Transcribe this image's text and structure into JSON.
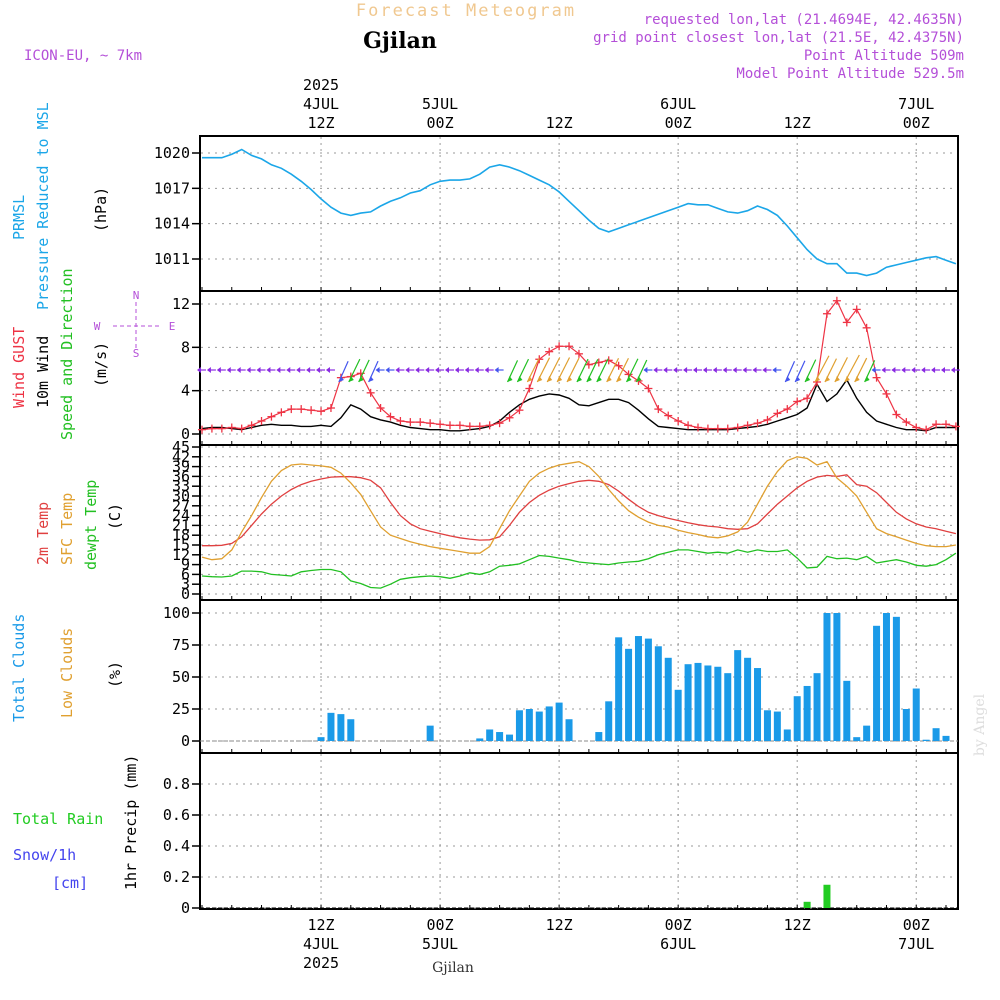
{
  "header": {
    "forecast_title": "Forecast Meteogram",
    "location": "Gjilan",
    "model": "ICON-EU, ~ 7km",
    "requested": "requested lon,lat (21.4694E, 42.4635N)",
    "gridpoint": "grid point closest lon,lat (21.5E, 42.4375N)",
    "point_altitude": "Point Altitude 509m",
    "model_altitude": "Model Point Altitude 529.5m",
    "footer_location": "Gjilan",
    "watermark": "by Angel"
  },
  "time_axis": {
    "top_labels": [
      {
        "h": 12,
        "lines": [
          "2025",
          "4JUL",
          "12Z"
        ]
      },
      {
        "h": 24,
        "lines": [
          "5JUL",
          "00Z"
        ]
      },
      {
        "h": 36,
        "lines": [
          "12Z"
        ]
      },
      {
        "h": 48,
        "lines": [
          "6JUL",
          "00Z"
        ]
      },
      {
        "h": 60,
        "lines": [
          "12Z"
        ]
      },
      {
        "h": 72,
        "lines": [
          "7JUL",
          "00Z"
        ]
      }
    ],
    "bottom_labels": [
      {
        "h": 12,
        "lines": [
          "12Z",
          "4JUL",
          "2025"
        ]
      },
      {
        "h": 24,
        "lines": [
          "00Z",
          "5JUL"
        ]
      },
      {
        "h": 36,
        "lines": [
          "12Z"
        ]
      },
      {
        "h": 48,
        "lines": [
          "00Z",
          "6JUL"
        ]
      },
      {
        "h": 60,
        "lines": [
          "12Z"
        ]
      },
      {
        "h": 72,
        "lines": [
          "00Z",
          "7JUL"
        ]
      }
    ]
  },
  "panel_labels": {
    "pressure": [
      "PRMSL",
      "Pressure Reduced to MSL"
    ],
    "pressure_unit": "(hPa)",
    "wind": [
      "Wind GUST",
      "10m Wind",
      "Speed and Direction"
    ],
    "wind_unit": "(m/s)",
    "compass": {
      "n": "N",
      "s": "S",
      "e": "E",
      "w": "W"
    },
    "temp": [
      "2m Temp",
      "SFC Temp",
      "dewpt Temp"
    ],
    "temp_unit": "(C)",
    "clouds": [
      "Total Clouds",
      "Low Clouds"
    ],
    "clouds_unit": "(%)",
    "precip": [
      "Total  Rain",
      "Snow/1h",
      "[cm]"
    ],
    "precip_unit": "1hr Precip (mm)"
  },
  "colors": {
    "pressure": "#1ba6e8",
    "gust": "#ee3344",
    "wind": "#000000",
    "t2m": "#e04040",
    "tsfc": "#e0a030",
    "dewpt": "#22c022",
    "clouds": "#1a9ae8",
    "rain": "#22cc22"
  },
  "chart_data": [
    {
      "type": "line",
      "panel": "pressure",
      "x_start_hour": 0,
      "x_end_hour": 76,
      "x_step_hours": 1,
      "yticks": [
        "1011",
        "1014",
        "1017",
        "1020"
      ],
      "ylim": [
        1009,
        1021.5
      ],
      "series": [
        {
          "name": "PRMSL",
          "values": [
            1019.6,
            1019.6,
            1019.6,
            1019.9,
            1020.3,
            1019.8,
            1019.5,
            1019.0,
            1018.7,
            1018.2,
            1017.6,
            1016.9,
            1016.1,
            1015.4,
            1014.9,
            1014.7,
            1014.9,
            1015.0,
            1015.5,
            1015.9,
            1016.2,
            1016.6,
            1016.8,
            1017.3,
            1017.6,
            1017.7,
            1017.7,
            1017.8,
            1018.2,
            1018.8,
            1019.0,
            1018.8,
            1018.5,
            1018.1,
            1017.7,
            1017.3,
            1016.7,
            1015.9,
            1015.1,
            1014.3,
            1013.6,
            1013.3,
            1013.6,
            1013.9,
            1014.2,
            1014.5,
            1014.8,
            1015.1,
            1015.4,
            1015.7,
            1015.6,
            1015.6,
            1015.3,
            1015.0,
            1014.9,
            1015.1,
            1015.5,
            1015.2,
            1014.7,
            1013.8,
            1012.8,
            1011.8,
            1011.0,
            1010.6,
            1010.6,
            1009.8,
            1009.8,
            1009.6,
            1009.8,
            1010.3,
            1010.5,
            1010.7,
            1010.9,
            1011.1,
            1011.2,
            1010.9,
            1010.6
          ]
        }
      ]
    },
    {
      "type": "line",
      "panel": "wind",
      "x_start_hour": 0,
      "x_end_hour": 76,
      "x_step_hours": 1,
      "yticks": [
        "0",
        "4",
        "8",
        "12"
      ],
      "ylim": [
        0,
        13.5
      ],
      "series": [
        {
          "name": "Wind GUST",
          "values": [
            0.4,
            0.5,
            0.5,
            0.6,
            0.5,
            0.8,
            1.2,
            1.6,
            2.0,
            2.3,
            2.3,
            2.2,
            2.1,
            2.4,
            5.2,
            5.3,
            5.6,
            3.8,
            2.4,
            1.6,
            1.2,
            1.1,
            1.1,
            1.0,
            0.9,
            0.8,
            0.8,
            0.7,
            0.7,
            0.8,
            1.0,
            1.5,
            2.2,
            4.2,
            6.9,
            7.6,
            8.1,
            8.1,
            7.4,
            6.4,
            6.6,
            6.8,
            6.3,
            5.5,
            4.9,
            4.2,
            2.3,
            1.7,
            1.2,
            0.8,
            0.6,
            0.5,
            0.5,
            0.5,
            0.6,
            0.8,
            1.0,
            1.3,
            1.9,
            2.3,
            3.0,
            3.3,
            4.8,
            11.1,
            12.3,
            10.3,
            11.5,
            9.8,
            5.2,
            3.7,
            1.8,
            1.1,
            0.6,
            0.4,
            0.9,
            0.9,
            0.7
          ]
        },
        {
          "name": "10m Wind",
          "values": [
            0.5,
            0.6,
            0.6,
            0.5,
            0.4,
            0.6,
            0.8,
            0.9,
            0.8,
            0.8,
            0.7,
            0.7,
            0.8,
            0.7,
            1.5,
            2.7,
            2.3,
            1.6,
            1.3,
            1.1,
            0.8,
            0.6,
            0.5,
            0.4,
            0.4,
            0.3,
            0.3,
            0.4,
            0.5,
            0.7,
            1.2,
            2.0,
            2.7,
            3.2,
            3.5,
            3.7,
            3.6,
            3.3,
            2.7,
            2.6,
            2.9,
            3.2,
            3.2,
            2.9,
            2.2,
            1.4,
            0.7,
            0.6,
            0.5,
            0.4,
            0.4,
            0.4,
            0.4,
            0.4,
            0.5,
            0.6,
            0.7,
            0.9,
            1.2,
            1.5,
            1.8,
            2.4,
            4.6,
            3.0,
            3.7,
            5.0,
            3.3,
            2.0,
            1.2,
            0.9,
            0.6,
            0.4,
            0.4,
            0.3,
            0.6,
            0.6,
            0.6
          ]
        }
      ]
    },
    {
      "type": "line",
      "panel": "temp",
      "x_start_hour": 0,
      "x_end_hour": 76,
      "x_step_hours": 1,
      "yticks": [
        "0",
        "3",
        "6",
        "9",
        "12",
        "15",
        "18",
        "21",
        "24",
        "27",
        "30",
        "33",
        "36",
        "39",
        "42",
        "45"
      ],
      "ylim": [
        0,
        45
      ],
      "series": [
        {
          "name": "2m Temp",
          "values": [
            14.8,
            14.8,
            14.9,
            15.5,
            17.5,
            21.0,
            24.5,
            27.5,
            30.0,
            32.0,
            33.5,
            34.5,
            35.2,
            35.8,
            35.9,
            35.9,
            35.6,
            34.8,
            32.5,
            28.0,
            24.0,
            21.5,
            20.0,
            19.2,
            18.5,
            17.8,
            17.2,
            16.8,
            16.5,
            16.6,
            17.5,
            21.0,
            25.0,
            28.0,
            30.2,
            31.8,
            33.0,
            33.8,
            34.5,
            34.8,
            34.5,
            33.5,
            31.5,
            29.0,
            26.8,
            25.0,
            24.0,
            23.2,
            22.5,
            21.8,
            21.2,
            20.8,
            20.5,
            20.0,
            19.8,
            20.0,
            21.5,
            24.5,
            27.5,
            30.0,
            32.5,
            34.5,
            35.8,
            36.3,
            36.0,
            36.5,
            33.5,
            33.0,
            31.0,
            28.0,
            25.0,
            23.0,
            21.5,
            20.5,
            20.0,
            19.2,
            18.5
          ]
        },
        {
          "name": "SFC Temp",
          "values": [
            11.3,
            10.5,
            10.8,
            13.5,
            19.0,
            24.0,
            29.5,
            34.5,
            37.8,
            39.5,
            39.8,
            39.5,
            39.2,
            38.8,
            37.0,
            34.0,
            30.5,
            25.5,
            20.5,
            18.0,
            17.0,
            16.0,
            15.2,
            14.5,
            14.0,
            13.5,
            13.0,
            12.5,
            12.5,
            14.5,
            20.0,
            25.5,
            30.0,
            34.5,
            37.0,
            38.5,
            39.5,
            40.0,
            40.5,
            39.0,
            36.0,
            32.0,
            28.5,
            25.5,
            23.5,
            22.0,
            21.0,
            20.5,
            19.5,
            18.8,
            18.2,
            17.5,
            17.2,
            17.8,
            19.0,
            22.0,
            27.5,
            33.0,
            37.5,
            40.8,
            42.0,
            41.5,
            39.5,
            40.5,
            35.5,
            33.0,
            30.0,
            25.0,
            20.0,
            18.5,
            17.5,
            16.5,
            15.5,
            14.8,
            14.5,
            14.5,
            15.0
          ]
        },
        {
          "name": "dewpt Temp",
          "values": [
            5.5,
            5.3,
            5.2,
            5.5,
            7.0,
            7.0,
            6.8,
            6.0,
            5.8,
            5.5,
            6.8,
            7.2,
            7.5,
            7.5,
            6.8,
            4.0,
            3.2,
            2.0,
            1.8,
            3.0,
            4.5,
            5.0,
            5.3,
            5.5,
            5.3,
            4.8,
            5.5,
            6.5,
            6.0,
            6.8,
            8.5,
            8.8,
            9.2,
            10.5,
            11.8,
            11.5,
            11.0,
            10.5,
            9.8,
            9.5,
            9.2,
            9.0,
            9.5,
            9.8,
            10.0,
            10.8,
            12.0,
            12.8,
            13.5,
            13.5,
            13.0,
            12.5,
            12.8,
            12.5,
            13.5,
            12.8,
            13.5,
            13.0,
            13.0,
            13.5,
            11.0,
            8.0,
            8.2,
            11.5,
            10.8,
            11.0,
            10.5,
            11.5,
            9.5,
            10.0,
            10.5,
            9.8,
            8.8,
            8.5,
            9.0,
            10.5,
            12.5
          ]
        }
      ]
    },
    {
      "type": "bar",
      "panel": "clouds",
      "x_start_hour": 0,
      "x_end_hour": 76,
      "x_step_hours": 1,
      "yticks": [
        "0",
        "25",
        "50",
        "75",
        "100"
      ],
      "ylim": [
        0,
        105
      ],
      "series": [
        {
          "name": "Total Clouds",
          "values": [
            0,
            0,
            0,
            0,
            0,
            0,
            0,
            0,
            0,
            0,
            0,
            0,
            3,
            22,
            21,
            17,
            0,
            0,
            0,
            0,
            0,
            0,
            0,
            12,
            0,
            0,
            0,
            0,
            2,
            9,
            7,
            5,
            24,
            25,
            23,
            27,
            30,
            17,
            0,
            0,
            7,
            31,
            81,
            72,
            82,
            80,
            74,
            65,
            40,
            60,
            61,
            59,
            58,
            53,
            71,
            65,
            57,
            24,
            23,
            9,
            35,
            43,
            53,
            100,
            100,
            47,
            3,
            12,
            90,
            100,
            97,
            25,
            41,
            1,
            10,
            4,
            0
          ]
        }
      ]
    },
    {
      "type": "bar",
      "panel": "precip",
      "x_start_hour": 0,
      "x_end_hour": 76,
      "x_step_hours": 1,
      "yticks": [
        "0",
        "0.2",
        "0.4",
        "0.6",
        "0.8"
      ],
      "ylim": [
        0,
        0.98
      ],
      "series": [
        {
          "name": "Total Rain",
          "values": [
            0,
            0,
            0,
            0,
            0,
            0,
            0,
            0,
            0,
            0,
            0,
            0,
            0,
            0,
            0,
            0,
            0,
            0,
            0,
            0,
            0,
            0,
            0,
            0,
            0,
            0,
            0,
            0,
            0,
            0,
            0,
            0,
            0,
            0,
            0,
            0,
            0,
            0,
            0,
            0,
            0,
            0,
            0,
            0,
            0,
            0,
            0,
            0,
            0,
            0,
            0,
            0,
            0,
            0,
            0,
            0,
            0,
            0,
            0,
            0,
            0,
            0.04,
            0,
            0.15,
            0,
            0,
            0,
            0,
            0,
            0,
            0,
            0,
            0,
            0,
            0,
            0,
            0
          ]
        }
      ]
    }
  ]
}
